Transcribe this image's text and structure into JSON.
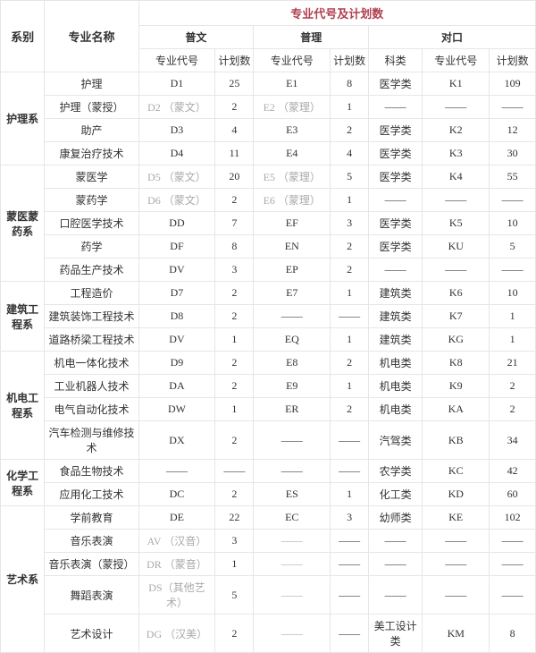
{
  "title": "专业代号及计划数",
  "headers": {
    "dept": "系别",
    "major": "专业名称",
    "groupA": "普文",
    "groupB": "普理",
    "groupC": "对口",
    "code": "专业代号",
    "count": "计划数",
    "category": "科类"
  },
  "colspec": {
    "dept_w": 46,
    "major_w": 98,
    "codeA_w": 80,
    "cntA_w": 40,
    "codeB_w": 80,
    "cntB_w": 40,
    "cat_w": 56,
    "codeC_w": 70,
    "cntC_w": 48
  },
  "depts": [
    {
      "name": "护理系",
      "rows": [
        {
          "major": "护理",
          "codeA": "D1",
          "cntA": "25",
          "codeB": "E1",
          "cntB": "8",
          "cat": "医学类",
          "codeC": "K1",
          "cntC": "109",
          "light": false
        },
        {
          "major": "护理（蒙授）",
          "codeA": "D2 （蒙文）",
          "cntA": "2",
          "codeB": "E2 （蒙理）",
          "cntB": "1",
          "cat": "——",
          "codeC": "——",
          "cntC": "——",
          "light": true
        },
        {
          "major": "助产",
          "codeA": "D3",
          "cntA": "4",
          "codeB": "E3",
          "cntB": "2",
          "cat": "医学类",
          "codeC": "K2",
          "cntC": "12",
          "light": false
        },
        {
          "major": "康复治疗技术",
          "codeA": "D4",
          "cntA": "11",
          "codeB": "E4",
          "cntB": "4",
          "cat": "医学类",
          "codeC": "K3",
          "cntC": "30",
          "light": false
        }
      ]
    },
    {
      "name": "蒙医蒙药系",
      "rows": [
        {
          "major": "蒙医学",
          "codeA": "D5 （蒙文）",
          "cntA": "20",
          "codeB": "E5 （蒙理）",
          "cntB": "5",
          "cat": "医学类",
          "codeC": "K4",
          "cntC": "55",
          "light": true
        },
        {
          "major": "蒙药学",
          "codeA": "D6 （蒙文）",
          "cntA": "2",
          "codeB": "E6 （蒙理）",
          "cntB": "1",
          "cat": "——",
          "codeC": "——",
          "cntC": "——",
          "light": true
        },
        {
          "major": "口腔医学技术",
          "codeA": "DD",
          "cntA": "7",
          "codeB": "EF",
          "cntB": "3",
          "cat": "医学类",
          "codeC": "K5",
          "cntC": "10",
          "light": false
        },
        {
          "major": "药学",
          "codeA": "DF",
          "cntA": "8",
          "codeB": "EN",
          "cntB": "2",
          "cat": "医学类",
          "codeC": "KU",
          "cntC": "5",
          "light": false
        },
        {
          "major": "药品生产技术",
          "codeA": "DV",
          "cntA": "3",
          "codeB": "EP",
          "cntB": "2",
          "cat": "——",
          "codeC": "——",
          "cntC": "——",
          "light": false
        }
      ]
    },
    {
      "name": "建筑工程系",
      "rows": [
        {
          "major": "工程造价",
          "codeA": "D7",
          "cntA": "2",
          "codeB": "E7",
          "cntB": "1",
          "cat": "建筑类",
          "codeC": "K6",
          "cntC": "10",
          "light": false
        },
        {
          "major": "建筑装饰工程技术",
          "codeA": "D8",
          "cntA": "2",
          "codeB": "——",
          "cntB": "——",
          "cat": "建筑类",
          "codeC": "K7",
          "cntC": "1",
          "light": false
        },
        {
          "major": "道路桥梁工程技术",
          "codeA": "DV",
          "cntA": "1",
          "codeB": "EQ",
          "cntB": "1",
          "cat": "建筑类",
          "codeC": "KG",
          "cntC": "1",
          "light": false
        }
      ]
    },
    {
      "name": "机电工程系",
      "rows": [
        {
          "major": "机电一体化技术",
          "codeA": "D9",
          "cntA": "2",
          "codeB": "E8",
          "cntB": "2",
          "cat": "机电类",
          "codeC": "K8",
          "cntC": "21",
          "light": false
        },
        {
          "major": "工业机器人技术",
          "codeA": "DA",
          "cntA": "2",
          "codeB": "E9",
          "cntB": "1",
          "cat": "机电类",
          "codeC": "K9",
          "cntC": "2",
          "light": false
        },
        {
          "major": "电气自动化技术",
          "codeA": "DW",
          "cntA": "1",
          "codeB": "ER",
          "cntB": "2",
          "cat": "机电类",
          "codeC": "KA",
          "cntC": "2",
          "light": false
        },
        {
          "major": "汽车检测与维修技术",
          "codeA": "DX",
          "cntA": "2",
          "codeB": "——",
          "cntB": "——",
          "cat": "汽驾类",
          "codeC": "KB",
          "cntC": "34",
          "light": false
        }
      ]
    },
    {
      "name": "化学工程系",
      "rows": [
        {
          "major": "食品生物技术",
          "codeA": "——",
          "cntA": "——",
          "codeB": "——",
          "cntB": "——",
          "cat": "农学类",
          "codeC": "KC",
          "cntC": "42",
          "light": false
        },
        {
          "major": "应用化工技术",
          "codeA": "DC",
          "cntA": "2",
          "codeB": "ES",
          "cntB": "1",
          "cat": "化工类",
          "codeC": "KD",
          "cntC": "60",
          "light": false
        }
      ]
    },
    {
      "name": "艺术系",
      "rows": [
        {
          "major": "学前教育",
          "codeA": "DE",
          "cntA": "22",
          "codeB": "EC",
          "cntB": "3",
          "cat": "幼师类",
          "codeC": "KE",
          "cntC": "102",
          "light": false
        },
        {
          "major": "音乐表演",
          "codeA": "AV （汉音）",
          "cntA": "3",
          "codeB": "——",
          "cntB": "——",
          "cat": "——",
          "codeC": "——",
          "cntC": "——",
          "light": true
        },
        {
          "major": "音乐表演（蒙授）",
          "codeA": "DR （蒙音）",
          "cntA": "1",
          "codeB": "——",
          "cntB": "——",
          "cat": "——",
          "codeC": "——",
          "cntC": "——",
          "light": true
        },
        {
          "major": "舞蹈表演",
          "codeA": "DS（其他艺术）",
          "cntA": "5",
          "codeB": "——",
          "cntB": "——",
          "cat": "——",
          "codeC": "——",
          "cntC": "——",
          "light": true
        },
        {
          "major": "艺术设计",
          "codeA": "DG （汉美）",
          "cntA": "2",
          "codeB": "——",
          "cntB": "——",
          "cat": "美工设计类",
          "codeC": "KM",
          "cntC": "8",
          "light": true
        }
      ]
    }
  ]
}
